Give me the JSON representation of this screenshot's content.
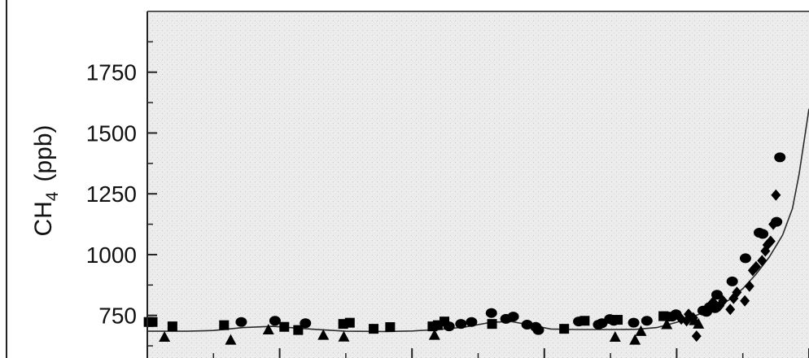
{
  "chart_data": {
    "type": "scatter",
    "title": "",
    "ylabel": {
      "main": "CH",
      "subscript": "4",
      "unit": "(ppb)"
    },
    "xlabel": "",
    "ylim": [
      575,
      2000
    ],
    "yticks": [
      750,
      1000,
      1250,
      1500,
      1750
    ],
    "ytick_labels": [
      "750",
      "1000",
      "1250",
      "1500",
      "1750"
    ],
    "xlim": [
      0,
      1000
    ],
    "xticks": [
      0,
      200,
      400,
      600,
      800,
      1000
    ],
    "grid": false,
    "legend": "none",
    "series": [
      {
        "marker": "square",
        "x": [
          2,
          8,
          38,
          116,
          207,
          228,
          296,
          306,
          342,
          367,
          431,
          439,
          449,
          521,
          630,
          661,
          711,
          780
        ],
        "y": [
          723,
          723,
          705,
          710,
          703,
          690,
          715,
          720,
          695,
          702,
          705,
          710,
          725,
          715,
          695,
          728,
          732,
          747
        ]
      },
      {
        "marker": "circle",
        "x": [
          142,
          193,
          239,
          456,
          474,
          490,
          520,
          542,
          553,
          574,
          587,
          591,
          652,
          682,
          687,
          699,
          705,
          735,
          755,
          788,
          793,
          799,
          840,
          845,
          850,
          858,
          861,
          884,
          904,
          925,
          930,
          951,
          956
        ],
        "y": [
          723,
          728,
          718,
          705,
          715,
          723,
          760,
          736,
          745,
          712,
          703,
          690,
          725,
          712,
          718,
          735,
          728,
          720,
          728,
          745,
          745,
          755,
          770,
          765,
          785,
          780,
          835,
          890,
          985,
          1090,
          1085,
          1135,
          1400
        ]
      },
      {
        "marker": "triangle",
        "x": [
          26,
          126,
          183,
          266,
          297,
          434,
          707,
          737,
          746,
          785,
          827,
          833
        ],
        "y": [
          662,
          650,
          692,
          670,
          663,
          670,
          662,
          650,
          686,
          714,
          730,
          716
        ]
      },
      {
        "marker": "diamond",
        "x": [
          807,
          815,
          818,
          825,
          830,
          848,
          852,
          855,
          865,
          870,
          881,
          886,
          891,
          903,
          910,
          915,
          920,
          929,
          934,
          937,
          942,
          946,
          950
        ],
        "y": [
          735,
          728,
          755,
          740,
          665,
          770,
          790,
          805,
          790,
          810,
          775,
          820,
          845,
          810,
          870,
          935,
          950,
          975,
          1015,
          1040,
          1055,
          1125,
          1245
        ]
      }
    ],
    "trend_line": {
      "x": [
        0,
        60,
        100,
        145,
        190,
        240,
        300,
        360,
        400,
        440,
        480,
        500,
        520,
        550,
        580,
        610,
        650,
        700,
        740,
        770,
        800,
        820,
        840,
        860,
        880,
        900,
        920,
        940,
        960,
        975,
        985,
        1000
      ],
      "y": [
        685,
        685,
        688,
        700,
        705,
        695,
        685,
        684,
        686,
        692,
        702,
        712,
        722,
        725,
        710,
        694,
        692,
        692,
        693,
        700,
        722,
        740,
        762,
        785,
        815,
        860,
        920,
        990,
        1080,
        1190,
        1330,
        1600
      ]
    },
    "colors": {
      "plot_background": "#ebebeb",
      "marker": "#000000",
      "line": "#2b2b2b",
      "axis": "#222222"
    }
  }
}
